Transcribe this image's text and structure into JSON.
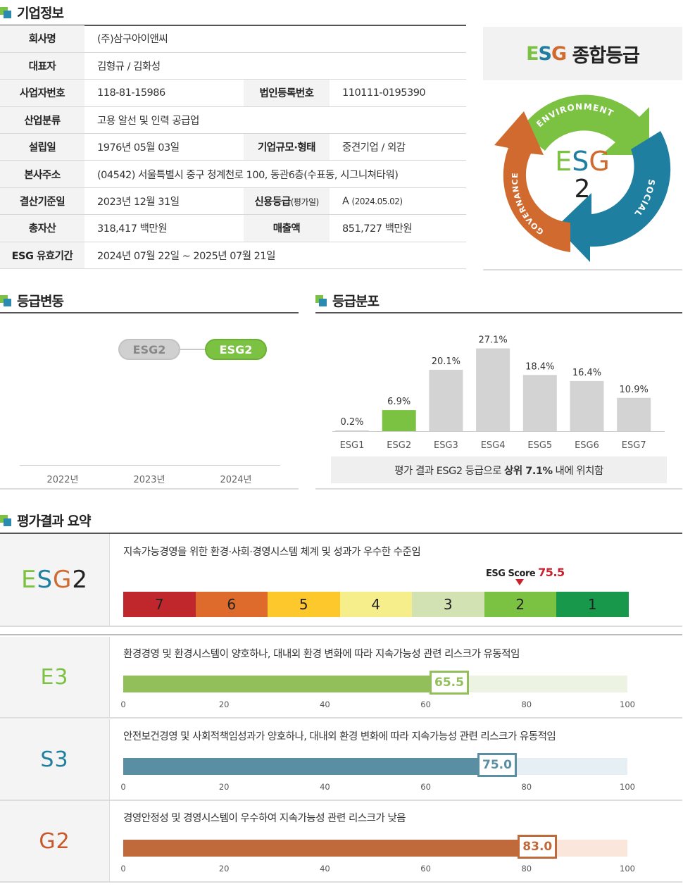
{
  "company": {
    "title": "기업정보",
    "rows": [
      {
        "l1": "회사명",
        "v1": "(주)삼구아이앤씨"
      },
      {
        "l1": "대표자",
        "v1": "김형규 / 김화성"
      },
      {
        "l1": "사업자번호",
        "v1": "118-81-15986",
        "l2": "법인등록번호",
        "v2": "110111-0195390"
      },
      {
        "l1": "산업분류",
        "v1": "고용 알선 및 인력 공급업"
      },
      {
        "l1": "설립일",
        "v1": "1976년 05월 03일",
        "l2": "기업규모·형태",
        "v2": "중견기업 / 외감"
      },
      {
        "l1": "본사주소",
        "v1": "(04542) 서울특별시 중구 청계천로 100, 동관6층(수표동, 시그니쳐타워)"
      },
      {
        "l1": "결산기준일",
        "v1": "2023년 12월 31일",
        "l2": "신용등급",
        "l2_small": "(평가일)",
        "v2": "A",
        "v2_small": "(2024.05.02)"
      },
      {
        "l1": "총자산",
        "v1": "318,417 백만원",
        "l2": "매출액",
        "v2": "851,727 백만원"
      },
      {
        "l1": "ESG 유효기간",
        "v1": "2024년 07월 22일 ~ 2025년 07월 21일"
      }
    ]
  },
  "grade_panel": {
    "title_e": "E",
    "title_s": "S",
    "title_g": "G",
    "title_rest": " 종합등급",
    "center_letters": {
      "e": "E",
      "s": "S",
      "g": "G"
    },
    "center_grade": "2",
    "ring_labels": {
      "environment": "ENVIRONMENT",
      "social": "SOCIAL",
      "governance": "GOVERNANCE"
    },
    "colors": {
      "environment": "#7cc242",
      "social": "#1f7fa0",
      "governance": "#d06a2e"
    }
  },
  "history": {
    "title": "등급변동",
    "years": [
      "2022년",
      "2023년",
      "2024년"
    ],
    "grades": {
      "2023": "ESG2",
      "2024": "ESG2"
    }
  },
  "distribution": {
    "title": "등급분포",
    "note_prefix": "평가 결과 ESG2 등급으로",
    "note_bold": "상위 7.1%",
    "note_suffix": "내에 위치함"
  },
  "chart_data": {
    "type": "bar",
    "categories": [
      "ESG1",
      "ESG2",
      "ESG3",
      "ESG4",
      "ESG5",
      "ESG6",
      "ESG7"
    ],
    "values": [
      0.2,
      6.9,
      20.1,
      27.1,
      18.4,
      16.4,
      10.9
    ],
    "labels": [
      "0.2%",
      "6.9%",
      "20.1%",
      "27.1%",
      "18.4%",
      "16.4%",
      "10.9%"
    ],
    "highlight_index": 1,
    "highlight_color": "#7cc242",
    "bar_color": "#d3d3d3",
    "ylim": [
      0,
      30
    ]
  },
  "summary": {
    "title": "평가결과 요약",
    "overall": {
      "label_e": "E",
      "label_s": "S",
      "label_g": "G",
      "label_num": "2",
      "desc": "지속가능경영을 위한 환경·사회·경영시스템 체계 및 성과가 우수한 수준임",
      "score_label": "ESG Score",
      "score": "75.5",
      "scale": [
        {
          "label": "7",
          "color": "#c0272d"
        },
        {
          "label": "6",
          "color": "#de6b2b"
        },
        {
          "label": "5",
          "color": "#fdc82c"
        },
        {
          "label": "4",
          "color": "#f5ee8b"
        },
        {
          "label": "3",
          "color": "#d2e2b3"
        },
        {
          "label": "2",
          "color": "#7cc242"
        },
        {
          "label": "1",
          "color": "#18984a"
        }
      ]
    },
    "ticks": [
      "0",
      "20",
      "40",
      "60",
      "80",
      "100"
    ],
    "items": [
      {
        "label": "E3",
        "desc": "환경경영 및 환경시스템이 양호하나, 대내외 환경 변화에 따라 지속가능성 관련 리스크가 유동적임",
        "score": 65.5,
        "score_text": "65.5",
        "color": "#93bf5a",
        "bg": "#ecf3e3",
        "text_color": "#7cc242"
      },
      {
        "label": "S3",
        "desc": "안전보건경영 및 사회적책임성과가 양호하나, 대내외 환경 변화에 따라 지속가능성 관련 리스크가 유동적임",
        "score": 75.0,
        "score_text": "75.0",
        "color": "#5a8fa3",
        "bg": "#e6f0f4",
        "text_color": "#1f7fa0"
      },
      {
        "label": "G2",
        "desc": "경영안정성 및 경영시스템이 우수하여 지속가능성 관련 리스크가 낮음",
        "score": 83.0,
        "score_text": "83.0",
        "color": "#c0693a",
        "bg": "#fbe6dc",
        "text_color": "#c8582a"
      }
    ]
  }
}
